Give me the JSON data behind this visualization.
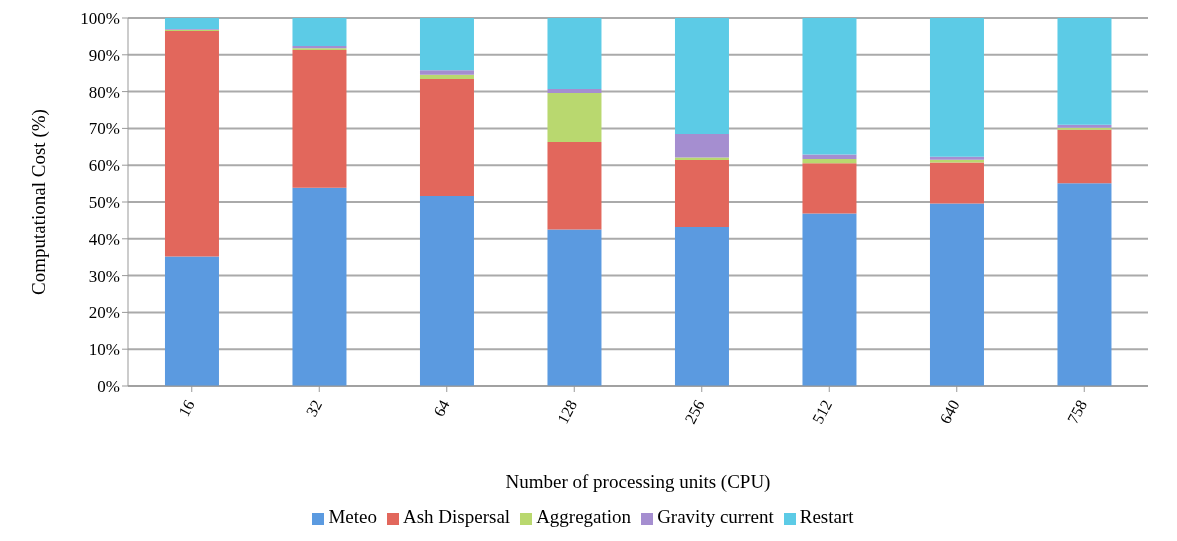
{
  "chart_data": {
    "type": "bar",
    "stacked": true,
    "xlabel": "Number of processing units (CPU)",
    "ylabel": "Computational Cost  (%)",
    "categories": [
      "16",
      "32",
      "64",
      "128",
      "256",
      "512",
      "640",
      "758"
    ],
    "series": [
      {
        "name": "Meteo",
        "color": "#5b9ae0",
        "values": [
          35.2,
          53.9,
          51.6,
          42.5,
          43.2,
          46.9,
          49.6,
          55.1
        ]
      },
      {
        "name": "Ash Dispersal",
        "color": "#e2675c",
        "values": [
          61.3,
          37.4,
          31.8,
          23.8,
          18.2,
          13.6,
          11.1,
          14.5
        ]
      },
      {
        "name": "Aggregation",
        "color": "#b9d86f",
        "values": [
          0.3,
          0.5,
          1.2,
          13.3,
          0.7,
          1.2,
          0.8,
          0.6
        ]
      },
      {
        "name": "Gravity current",
        "color": "#a58ed0",
        "values": [
          0.2,
          0.6,
          1.2,
          1.1,
          6.4,
          1.2,
          0.8,
          0.8
        ]
      },
      {
        "name": "Restart",
        "color": "#5ccbe6",
        "values": [
          3.0,
          7.6,
          14.2,
          19.3,
          31.5,
          37.1,
          37.7,
          29.0
        ]
      }
    ],
    "ylim": [
      0,
      100
    ],
    "yticks": [
      {
        "value": 0,
        "label": "0%"
      },
      {
        "value": 10,
        "label": "10%"
      },
      {
        "value": 20,
        "label": "20%"
      },
      {
        "value": 30,
        "label": "30%"
      },
      {
        "value": 40,
        "label": "40%"
      },
      {
        "value": 50,
        "label": "50%"
      },
      {
        "value": 60,
        "label": "60%"
      },
      {
        "value": 70,
        "label": "70%"
      },
      {
        "value": 80,
        "label": "80%"
      },
      {
        "value": 90,
        "label": "90%"
      },
      {
        "value": 100,
        "label": "100%"
      }
    ],
    "grid": "y",
    "legend": "bottom"
  }
}
